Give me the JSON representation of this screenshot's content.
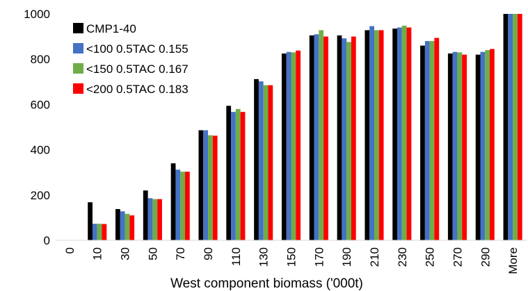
{
  "chart_data": {
    "type": "bar",
    "title": "",
    "xlabel": "West component biomass ('000t)",
    "ylabel": "",
    "ylim": [
      0,
      1000
    ],
    "yticks": [
      0,
      200,
      400,
      600,
      800,
      1000
    ],
    "grid": false,
    "legend_position": "top-left",
    "categories": [
      "0",
      "10",
      "30",
      "50",
      "70",
      "90",
      "110",
      "130",
      "150",
      "170",
      "190",
      "210",
      "230",
      "250",
      "270",
      "290",
      "More"
    ],
    "series": [
      {
        "name": "CMP1-40",
        "color": "#000000",
        "values": [
          0,
          168,
          138,
          220,
          340,
          486,
          594,
          712,
          825,
          905,
          905,
          928,
          935,
          860,
          825,
          820,
          1000
        ]
      },
      {
        "name": "<100 0.5TAC 0.155",
        "color": "#4472C4",
        "values": [
          0,
          73,
          128,
          186,
          312,
          486,
          567,
          702,
          832,
          910,
          892,
          946,
          940,
          880,
          832,
          832,
          1000
        ]
      },
      {
        "name": "<150 0.5TAC 0.167",
        "color": "#70AD47",
        "values": [
          0,
          73,
          117,
          182,
          303,
          464,
          580,
          685,
          830,
          928,
          876,
          928,
          948,
          880,
          830,
          840,
          1000
        ]
      },
      {
        "name": "<200 0.5TAC 0.183",
        "color": "#FF0000",
        "values": [
          0,
          72,
          110,
          182,
          303,
          462,
          567,
          685,
          838,
          900,
          900,
          928,
          940,
          894,
          820,
          845,
          1000
        ]
      }
    ]
  }
}
